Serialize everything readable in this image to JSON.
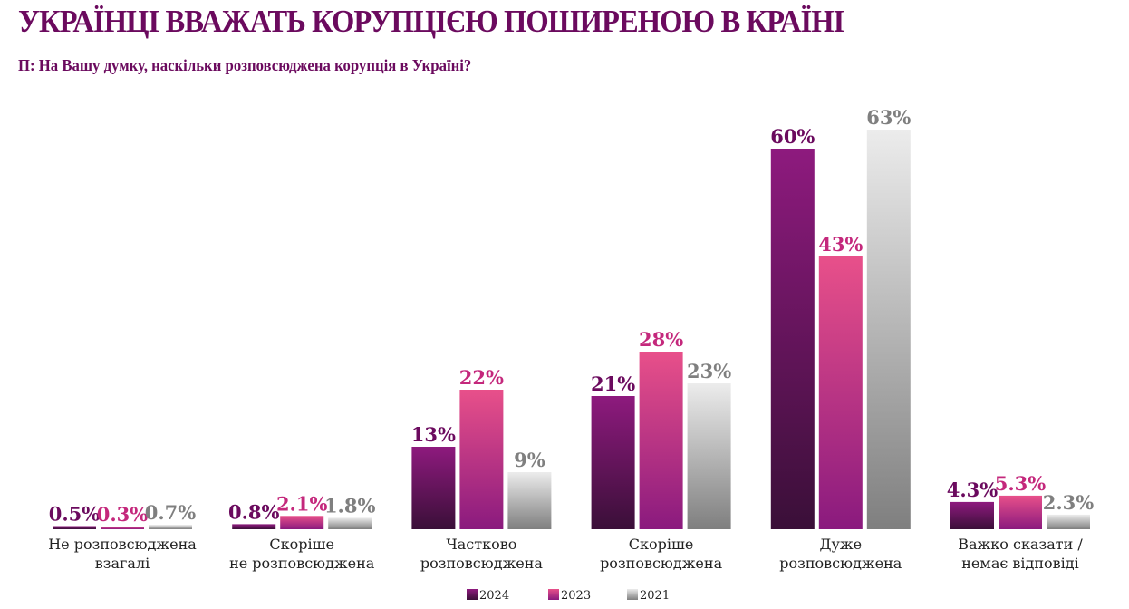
{
  "title": "УКРАЇНЦІ ВВАЖАТЬ КОРУПЦІЄЮ ПОШИРЕНОЮ В КРАЇНІ",
  "subtitle": "П: На Вашу думку, наскільки розповсюджена корупція в Україні?",
  "chart_data": {
    "type": "bar",
    "title": "УКРАЇНЦІ ВВАЖАТЬ КОРУПЦІЄЮ ПОШИРЕНОЮ В КРАЇНІ",
    "categories": [
      [
        "Не розповсюджена",
        "взагалі"
      ],
      [
        "Скоріше",
        "не розповсюджена"
      ],
      [
        "Частково",
        "розповсюджена"
      ],
      [
        "Скоріше",
        "розповсюджена"
      ],
      [
        "Дуже",
        "розповсюджена"
      ],
      [
        "Важко сказати /",
        "немає відповіді"
      ]
    ],
    "series": [
      {
        "name": "2024",
        "values": [
          0.5,
          0.8,
          13,
          21,
          60,
          4.3
        ],
        "labels": [
          "0.5%",
          "0.8%",
          "13%",
          "21%",
          "60%",
          "4.3%"
        ],
        "color": "#7a1470",
        "label_color": "#6b0a5e"
      },
      {
        "name": "2023",
        "values": [
          0.3,
          2.1,
          22,
          28,
          43,
          5.3
        ],
        "labels": [
          "0.3%",
          "2.1%",
          "22%",
          "28%",
          "43%",
          "5.3%"
        ],
        "color": "#c8307e",
        "label_color": "#c4287c"
      },
      {
        "name": "2021",
        "values": [
          0.7,
          1.8,
          9,
          23,
          63,
          2.3
        ],
        "labels": [
          "0.7%",
          "1.8%",
          "9%",
          "23%",
          "63%",
          "2.3%"
        ],
        "color": "#a0a0a0",
        "label_color": "#7f7f7f"
      }
    ],
    "unit": "%",
    "legend": "bottom",
    "grid": false,
    "ylim": [
      0,
      63
    ]
  }
}
